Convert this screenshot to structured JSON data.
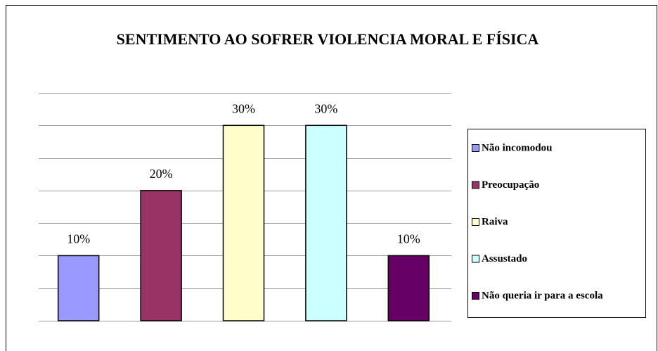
{
  "chart_data": {
    "type": "bar",
    "title": "SENTIMENTO AO SOFRER VIOLENCIA MORAL E FÍSICA",
    "series": [
      {
        "name": "Não incomodou",
        "color": "#9999ff",
        "values": [
          10
        ],
        "value_labels": [
          "10%"
        ]
      },
      {
        "name": "Preocupação",
        "color": "#993366",
        "values": [
          20
        ],
        "value_labels": [
          "20%"
        ]
      },
      {
        "name": "Raiva",
        "color": "#ffffcc",
        "values": [
          30
        ],
        "value_labels": [
          "30%"
        ]
      },
      {
        "name": "Assustado",
        "color": "#ccffff",
        "values": [
          30
        ],
        "value_labels": [
          "30%"
        ]
      },
      {
        "name": "Não queria ir para a escola",
        "color": "#660066",
        "values": [
          10
        ],
        "value_labels": [
          "10%"
        ]
      }
    ],
    "ylim": [
      0,
      35
    ],
    "yticks": [
      0,
      5,
      10,
      15,
      20,
      25,
      30,
      35
    ],
    "grid": true,
    "legend": "right"
  }
}
